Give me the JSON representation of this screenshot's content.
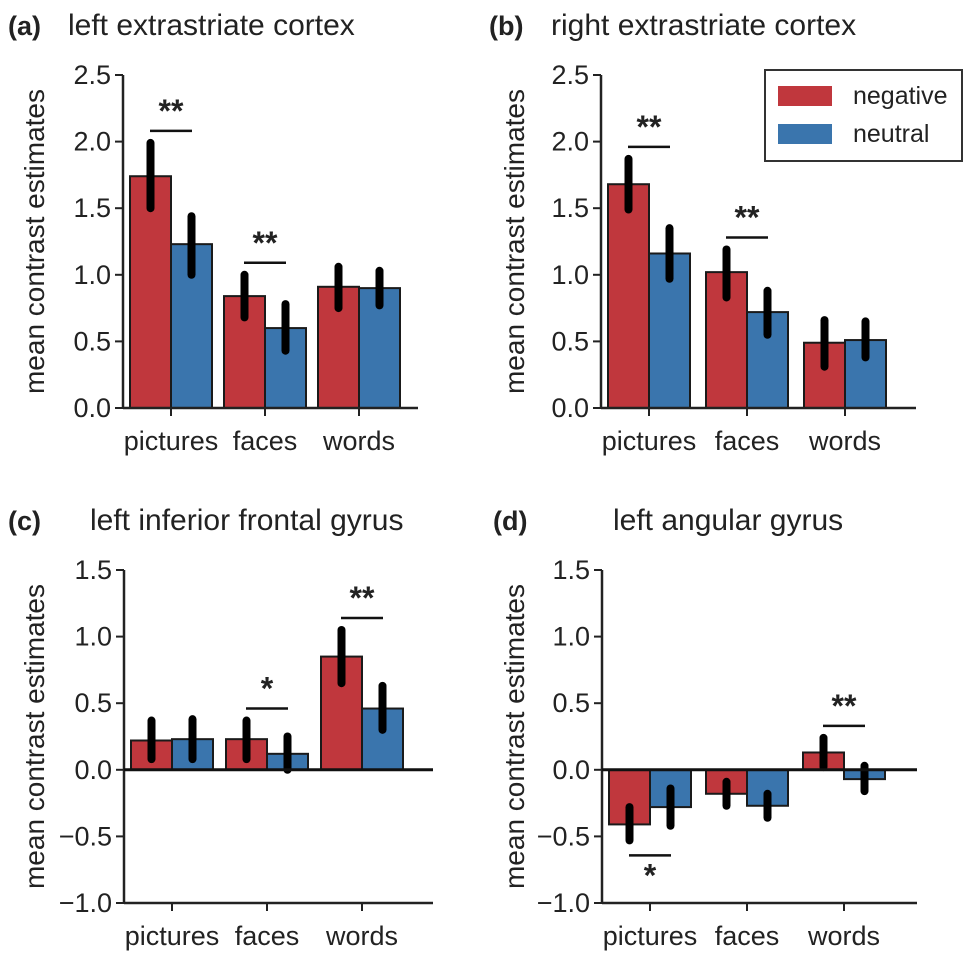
{
  "colors": {
    "negative": "#c0373d",
    "neutral": "#3a75ad",
    "error_bar": "#000000"
  },
  "legend": [
    {
      "name": "negative",
      "color_key": "negative"
    },
    {
      "name": "neutral",
      "color_key": "neutral"
    }
  ],
  "chart_data": [
    {
      "type": "bar",
      "panel": "(a)",
      "title": "left extrastriate cortex",
      "ylabel": "mean contrast estimates",
      "categories": [
        "pictures",
        "faces",
        "words"
      ],
      "ylim": [
        0,
        2.5
      ],
      "yticks": [
        "0.0",
        "0.5",
        "1.0",
        "1.5",
        "2.0",
        "2.5"
      ],
      "series": [
        {
          "name": "negative",
          "values": [
            1.74,
            0.84,
            0.91
          ],
          "err_low": [
            1.5,
            0.68,
            0.75
          ],
          "err_high": [
            1.99,
            1.0,
            1.06
          ]
        },
        {
          "name": "neutral",
          "values": [
            1.23,
            0.6,
            0.9
          ],
          "err_low": [
            1.0,
            0.43,
            0.77
          ],
          "err_high": [
            1.44,
            0.78,
            1.03
          ]
        }
      ],
      "significance": [
        {
          "category": 0,
          "label": "**",
          "position": "above"
        },
        {
          "category": 1,
          "label": "**",
          "position": "above"
        }
      ]
    },
    {
      "type": "bar",
      "panel": "(b)",
      "title": "right extrastriate cortex",
      "ylabel": "mean contrast estimates",
      "categories": [
        "pictures",
        "faces",
        "words"
      ],
      "ylim": [
        0,
        2.5
      ],
      "yticks": [
        "0.0",
        "0.5",
        "1.0",
        "1.5",
        "2.0",
        "2.5"
      ],
      "series": [
        {
          "name": "negative",
          "values": [
            1.68,
            1.02,
            0.49
          ],
          "err_low": [
            1.49,
            0.83,
            0.31
          ],
          "err_high": [
            1.87,
            1.19,
            0.66
          ]
        },
        {
          "name": "neutral",
          "values": [
            1.16,
            0.72,
            0.51
          ],
          "err_low": [
            0.97,
            0.55,
            0.38
          ],
          "err_high": [
            1.35,
            0.88,
            0.65
          ]
        }
      ],
      "significance": [
        {
          "category": 0,
          "label": "**",
          "position": "above"
        },
        {
          "category": 1,
          "label": "**",
          "position": "above"
        }
      ],
      "legend_position": "top-right"
    },
    {
      "type": "bar",
      "panel": "(c)",
      "title": "left inferior frontal gyrus",
      "ylabel": "mean contrast estimates",
      "categories": [
        "pictures",
        "faces",
        "words"
      ],
      "ylim": [
        -1.0,
        1.5
      ],
      "yticks": [
        "−1.0",
        "−0.5",
        "0.0",
        "0.5",
        "1.0",
        "1.5"
      ],
      "series": [
        {
          "name": "negative",
          "values": [
            0.22,
            0.23,
            0.85
          ],
          "err_low": [
            0.08,
            0.08,
            0.65
          ],
          "err_high": [
            0.37,
            0.37,
            1.05
          ]
        },
        {
          "name": "neutral",
          "values": [
            0.23,
            0.12,
            0.46
          ],
          "err_low": [
            0.08,
            0.0,
            0.3
          ],
          "err_high": [
            0.38,
            0.25,
            0.63
          ]
        }
      ],
      "significance": [
        {
          "category": 1,
          "label": "*",
          "position": "above"
        },
        {
          "category": 2,
          "label": "**",
          "position": "above"
        }
      ]
    },
    {
      "type": "bar",
      "panel": "(d)",
      "title": "left angular gyrus",
      "ylabel": "mean contrast estimates",
      "categories": [
        "pictures",
        "faces",
        "words"
      ],
      "ylim": [
        -1.0,
        1.5
      ],
      "yticks": [
        "−1.0",
        "−0.5",
        "0.0",
        "0.5",
        "1.0",
        "1.5"
      ],
      "series": [
        {
          "name": "negative",
          "values": [
            -0.41,
            -0.18,
            0.13
          ],
          "err_low": [
            -0.53,
            -0.27,
            0.02
          ],
          "err_high": [
            -0.28,
            -0.09,
            0.24
          ]
        },
        {
          "name": "neutral",
          "values": [
            -0.28,
            -0.27,
            -0.07
          ],
          "err_low": [
            -0.42,
            -0.36,
            -0.16
          ],
          "err_high": [
            -0.14,
            -0.18,
            0.03
          ]
        }
      ],
      "significance": [
        {
          "category": 0,
          "label": "*",
          "position": "below"
        },
        {
          "category": 2,
          "label": "**",
          "position": "above"
        }
      ]
    }
  ]
}
